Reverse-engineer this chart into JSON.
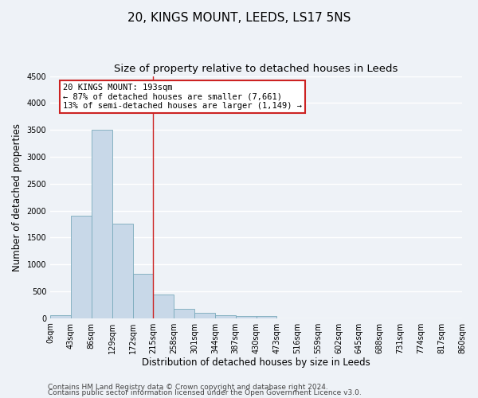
{
  "title": "20, KINGS MOUNT, LEEDS, LS17 5NS",
  "subtitle": "Size of property relative to detached houses in Leeds",
  "xlabel": "Distribution of detached houses by size in Leeds",
  "ylabel": "Number of detached properties",
  "bar_values": [
    50,
    1900,
    3500,
    1750,
    830,
    440,
    170,
    100,
    60,
    40,
    40,
    0,
    0,
    0,
    0,
    0,
    0,
    0,
    0,
    0
  ],
  "bar_labels": [
    "0sqm",
    "43sqm",
    "86sqm",
    "129sqm",
    "172sqm",
    "215sqm",
    "258sqm",
    "301sqm",
    "344sqm",
    "387sqm",
    "430sqm",
    "473sqm",
    "516sqm",
    "559sqm",
    "602sqm",
    "645sqm",
    "688sqm",
    "731sqm",
    "774sqm",
    "817sqm",
    "860sqm"
  ],
  "bar_color": "#c8d8e8",
  "bar_edge_color": "#7aaabb",
  "ylim": [
    0,
    4500
  ],
  "yticks": [
    0,
    500,
    1000,
    1500,
    2000,
    2500,
    3000,
    3500,
    4000,
    4500
  ],
  "vline_x": 4.49,
  "vline_color": "#cc2222",
  "annotation_text": "20 KINGS MOUNT: 193sqm\n← 87% of detached houses are smaller (7,661)\n13% of semi-detached houses are larger (1,149) →",
  "annotation_box_color": "#ffffff",
  "annotation_box_edge": "#cc2222",
  "footnote1": "Contains HM Land Registry data © Crown copyright and database right 2024.",
  "footnote2": "Contains public sector information licensed under the Open Government Licence v3.0.",
  "background_color": "#eef2f7",
  "grid_color": "#ffffff",
  "title_fontsize": 11,
  "subtitle_fontsize": 9.5,
  "axis_label_fontsize": 8.5,
  "tick_fontsize": 7,
  "annotation_fontsize": 7.5,
  "footnote_fontsize": 6.5
}
